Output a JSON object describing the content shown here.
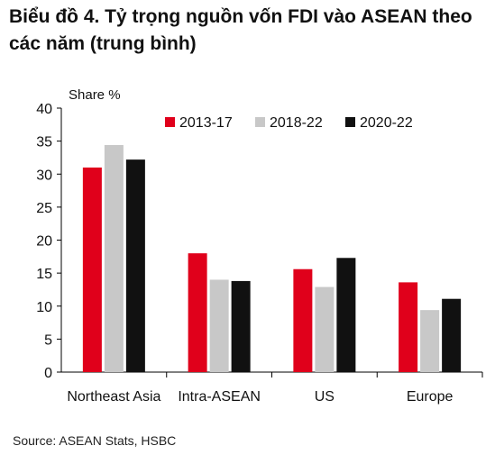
{
  "title": "Biểu đồ 4. Tỷ trọng nguồn vốn FDI vào ASEAN theo các năm (trung bình)",
  "source": "Source: ASEAN Stats, HSBC",
  "chart_data": {
    "type": "bar",
    "ylabel": "Share %",
    "xlabel": "",
    "ylim": [
      0,
      40
    ],
    "yticks": [
      0,
      5,
      10,
      15,
      20,
      25,
      30,
      35,
      40
    ],
    "grid": false,
    "legend_position": "top-right",
    "categories": [
      "Northeast Asia",
      "Intra-ASEAN",
      "US",
      "Europe"
    ],
    "series": [
      {
        "name": "2013-17",
        "color": "#e0001b",
        "values": [
          31.0,
          18.0,
          15.6,
          13.6
        ]
      },
      {
        "name": "2018-22",
        "color": "#c8c8c8",
        "values": [
          34.4,
          14.0,
          12.9,
          9.4
        ]
      },
      {
        "name": "2020-22",
        "color": "#111111",
        "values": [
          32.2,
          13.8,
          17.3,
          11.1
        ]
      }
    ]
  }
}
